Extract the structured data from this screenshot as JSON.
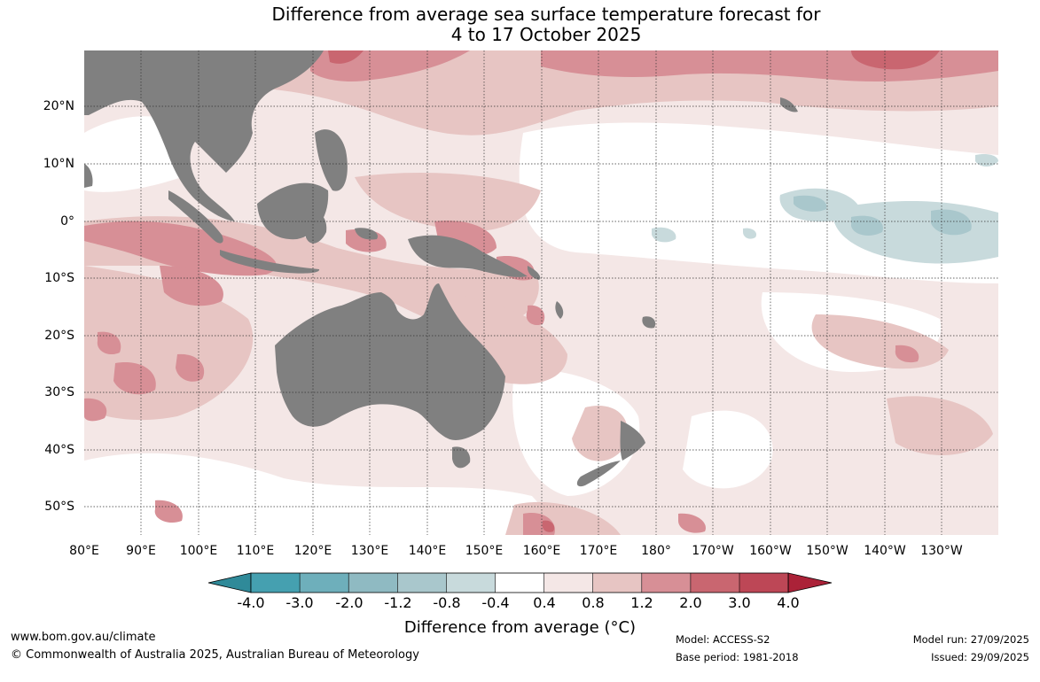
{
  "title_line1": "Difference from average sea surface temperature forecast for",
  "title_line2": "4 to 17 October 2025",
  "lat_labels": [
    "20°N",
    "10°N",
    "0°",
    "10°S",
    "20°S",
    "30°S",
    "40°S",
    "50°S"
  ],
  "lon_labels": [
    "80°E",
    "90°E",
    "100°E",
    "110°E",
    "120°E",
    "130°E",
    "140°E",
    "150°E",
    "160°E",
    "170°E",
    "180°",
    "170°W",
    "160°W",
    "150°W",
    "140°W",
    "130°W"
  ],
  "colorbar": {
    "tick_labels": [
      "-4.0",
      "-3.0",
      "-2.0",
      "-1.2",
      "-0.8",
      "-0.4",
      "0.4",
      "0.8",
      "1.2",
      "2.0",
      "3.0",
      "4.0"
    ],
    "colors": [
      "#2f8a99",
      "#45a0b0",
      "#6eafbb",
      "#8fbac2",
      "#a9c7cc",
      "#c8dadc",
      "#ffffff",
      "#f4e7e6",
      "#e7c5c3",
      "#d78f96",
      "#c96670",
      "#bd4756",
      "#ab2238"
    ],
    "label": "Difference from average (°C)"
  },
  "land_color": "#808080",
  "footer": {
    "url": "www.bom.gov.au/climate",
    "copyright": "© Commonwealth of Australia 2025, Australian Bureau of Meteorology",
    "model": "Model: ACCESS-S2",
    "base_period": "Base period: 1981-2018",
    "model_run": "Model run: 27/09/2025",
    "issued": "Issued: 29/09/2025"
  }
}
